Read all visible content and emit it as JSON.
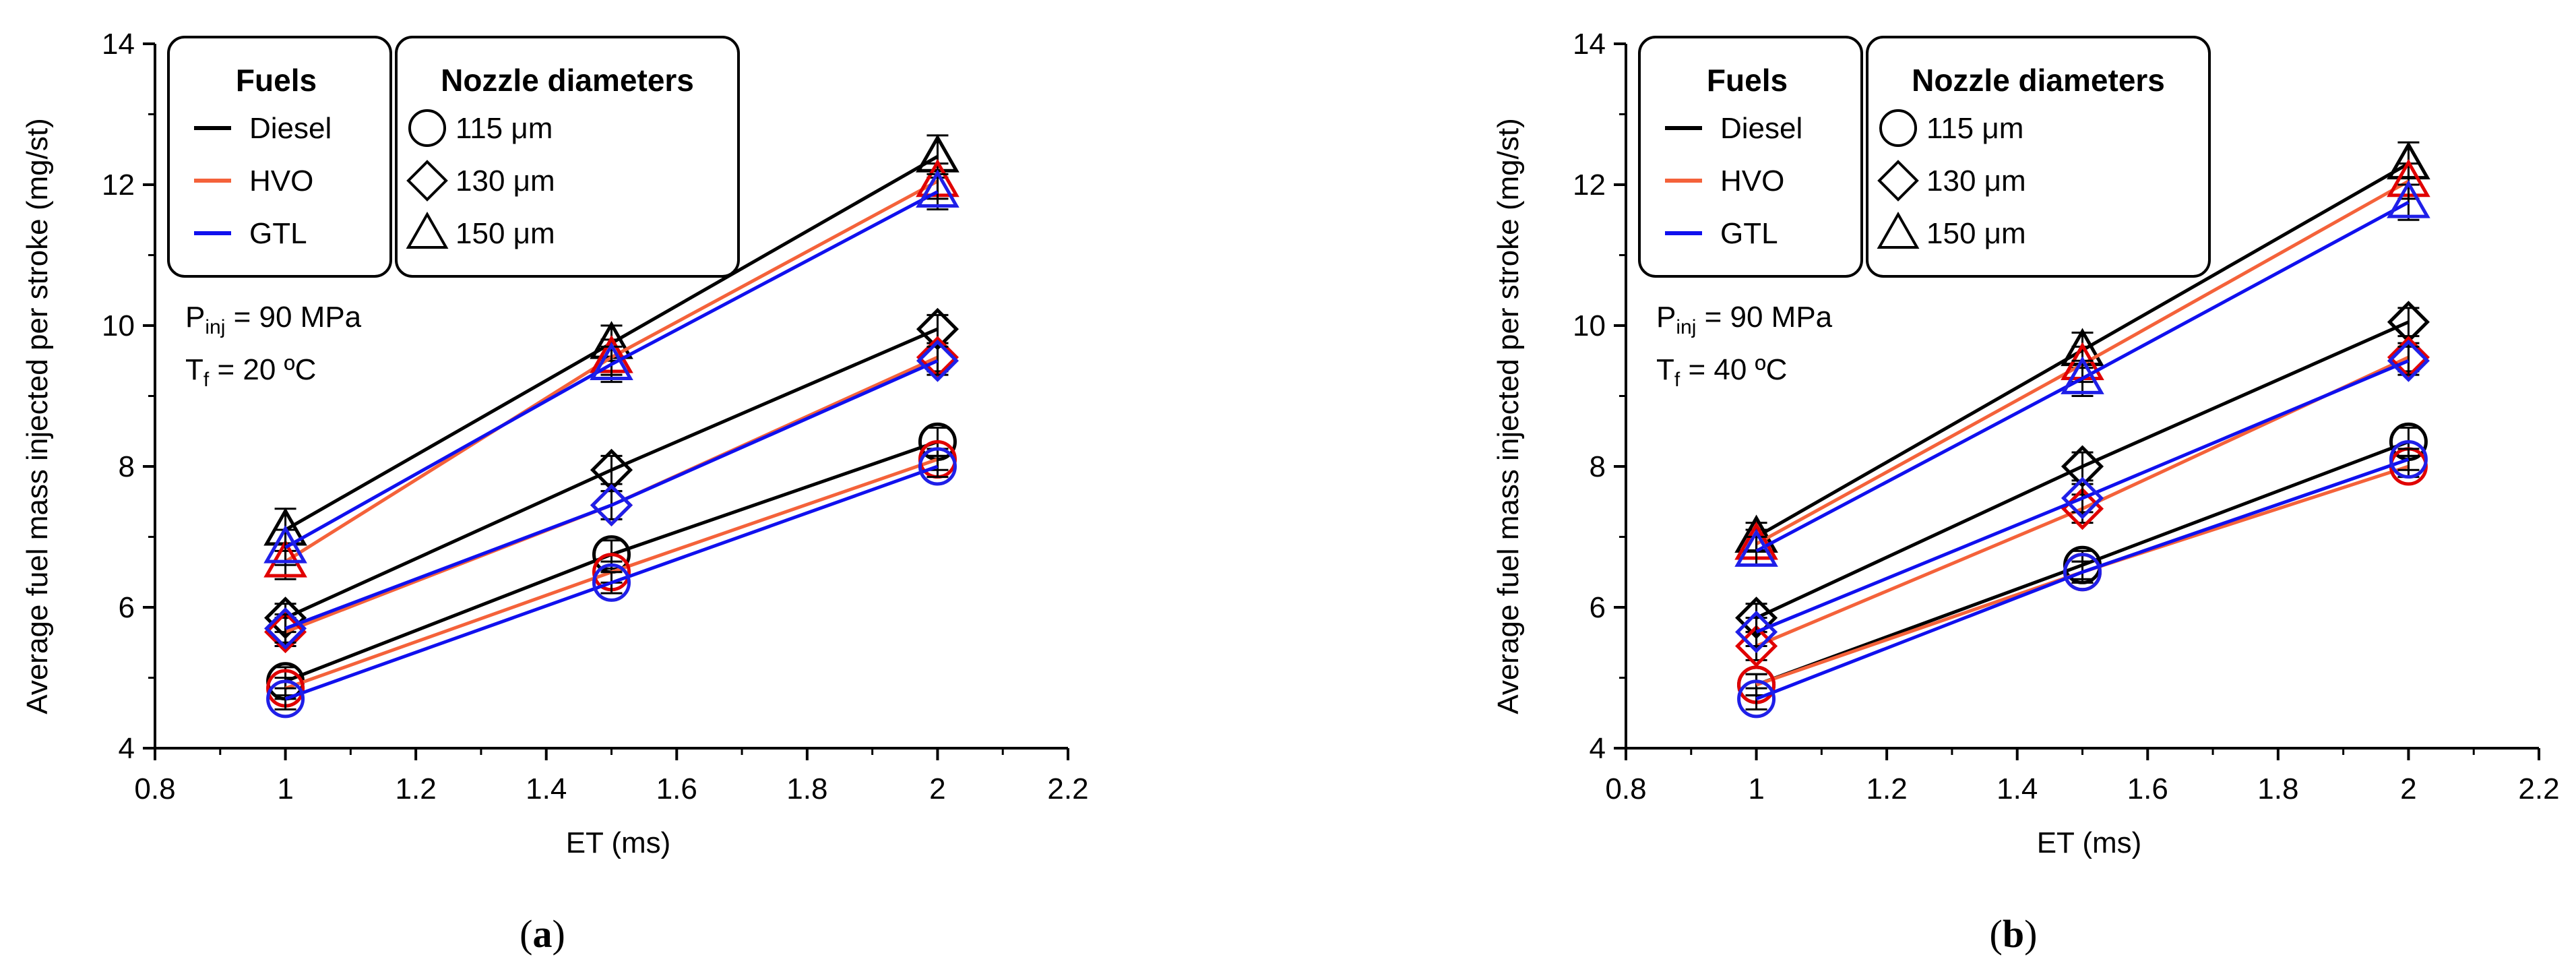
{
  "panels": [
    {
      "caption": {
        "pre": "(",
        "letter": "a",
        "post": ")"
      },
      "chart_data": {
        "type": "line",
        "xlabel": "ET (ms)",
        "ylabel": "Average fuel mass injected per stroke (mg/st)",
        "xlim": [
          0.8,
          2.2
        ],
        "ylim": [
          4,
          14
        ],
        "xticks": [
          "0.8",
          "1",
          "1.2",
          "1.4",
          "1.6",
          "1.8",
          "2",
          "2.2"
        ],
        "yticks": [
          "4",
          "6",
          "8",
          "10",
          "12",
          "14"
        ],
        "x": [
          1,
          1.5,
          2
        ],
        "series": [
          {
            "fuel": "Diesel",
            "nozzle": "115 μm",
            "values": [
              4.95,
              6.75,
              8.35
            ],
            "err": [
              0.2,
              0.2,
              0.2
            ]
          },
          {
            "fuel": "HVO",
            "nozzle": "115 μm",
            "values": [
              4.85,
              6.5,
              8.1
            ],
            "err": [
              0.15,
              0.15,
              0.15
            ]
          },
          {
            "fuel": "GTL",
            "nozzle": "115 μm",
            "values": [
              4.7,
              6.35,
              8.0
            ],
            "err": [
              0.15,
              0.15,
              0.15
            ]
          },
          {
            "fuel": "Diesel",
            "nozzle": "130 μm",
            "values": [
              5.85,
              7.95,
              9.95
            ],
            "err": [
              0.2,
              0.2,
              0.2
            ]
          },
          {
            "fuel": "HVO",
            "nozzle": "130 μm",
            "values": [
              5.65,
              7.45,
              9.55
            ],
            "err": [
              0.2,
              0.2,
              0.2
            ]
          },
          {
            "fuel": "GTL",
            "nozzle": "130 μm",
            "values": [
              5.7,
              7.45,
              9.5
            ],
            "err": [
              0.2,
              0.2,
              0.2
            ]
          },
          {
            "fuel": "Diesel",
            "nozzle": "150 μm",
            "values": [
              7.1,
              9.75,
              12.4
            ],
            "err": [
              0.3,
              0.25,
              0.3
            ]
          },
          {
            "fuel": "HVO",
            "nozzle": "150 μm",
            "values": [
              6.65,
              9.55,
              12.05
            ],
            "err": [
              0.25,
              0.25,
              0.25
            ]
          },
          {
            "fuel": "GTL",
            "nozzle": "150 μm",
            "values": [
              6.85,
              9.45,
              11.9
            ],
            "err": [
              0.25,
              0.25,
              0.25
            ]
          }
        ],
        "legend_fuels": {
          "title": "Fuels",
          "items": [
            "Diesel",
            "HVO",
            "GTL"
          ]
        },
        "legend_nozzles": {
          "title": "Nozzle diameters",
          "items": [
            "115 μm",
            "130 μm",
            "150 μm"
          ]
        },
        "annotation": {
          "p_main": "P",
          "p_sub": "inj",
          "p_value": " = 90 MPa",
          "t_main": "T",
          "t_sub": "f",
          "t_value": " = 20 ºC"
        }
      }
    },
    {
      "caption": {
        "pre": "(",
        "letter": "b",
        "post": ")"
      },
      "chart_data": {
        "type": "line",
        "xlabel": "ET (ms)",
        "ylabel": "Average fuel mass injected per stroke (mg/st)",
        "xlim": [
          0.8,
          2.2
        ],
        "ylim": [
          4,
          14
        ],
        "xticks": [
          "0.8",
          "1",
          "1.2",
          "1.4",
          "1.6",
          "1.8",
          "2",
          "2.2"
        ],
        "yticks": [
          "4",
          "6",
          "8",
          "10",
          "12",
          "14"
        ],
        "x": [
          1,
          1.5,
          2
        ],
        "series": [
          {
            "fuel": "Diesel",
            "nozzle": "115 μm",
            "values": [
              4.9,
              6.6,
              8.35
            ],
            "err": [
              0.15,
              0.2,
              0.2
            ]
          },
          {
            "fuel": "HVO",
            "nozzle": "115 μm",
            "values": [
              4.9,
              6.5,
              8.0
            ],
            "err": [
              0.15,
              0.15,
              0.15
            ]
          },
          {
            "fuel": "GTL",
            "nozzle": "115 μm",
            "values": [
              4.7,
              6.5,
              8.1
            ],
            "err": [
              0.15,
              0.15,
              0.15
            ]
          },
          {
            "fuel": "Diesel",
            "nozzle": "130 μm",
            "values": [
              5.85,
              8.0,
              10.05
            ],
            "err": [
              0.2,
              0.2,
              0.2
            ]
          },
          {
            "fuel": "HVO",
            "nozzle": "130 μm",
            "values": [
              5.45,
              7.4,
              9.55
            ],
            "err": [
              0.2,
              0.2,
              0.2
            ]
          },
          {
            "fuel": "GTL",
            "nozzle": "130 μm",
            "values": [
              5.65,
              7.55,
              9.5
            ],
            "err": [
              0.2,
              0.2,
              0.2
            ]
          },
          {
            "fuel": "Diesel",
            "nozzle": "150 μm",
            "values": [
              7.0,
              9.65,
              12.3
            ],
            "err": [
              0.2,
              0.25,
              0.3
            ]
          },
          {
            "fuel": "HVO",
            "nozzle": "150 μm",
            "values": [
              6.9,
              9.45,
              12.05
            ],
            "err": [
              0.2,
              0.25,
              0.25
            ]
          },
          {
            "fuel": "GTL",
            "nozzle": "150 μm",
            "values": [
              6.8,
              9.25,
              11.75
            ],
            "err": [
              0.2,
              0.25,
              0.25
            ]
          }
        ],
        "legend_fuels": {
          "title": "Fuels",
          "items": [
            "Diesel",
            "HVO",
            "GTL"
          ]
        },
        "legend_nozzles": {
          "title": "Nozzle diameters",
          "items": [
            "115 μm",
            "130 μm",
            "150 μm"
          ]
        },
        "annotation": {
          "p_main": "P",
          "p_sub": "inj",
          "p_value": " = 90 MPa",
          "t_main": "T",
          "t_sub": "f",
          "t_value": " = 40 ºC"
        }
      }
    }
  ],
  "colors": {
    "Diesel": "#000000",
    "HVO": "#f4623a",
    "GTL": "#1010ee",
    "marker_Diesel": "#000000",
    "marker_HVO": "#e00000",
    "marker_GTL": "#1f1fe8"
  },
  "markers": {
    "115 μm": "circle-icon",
    "130 μm": "diamond-icon",
    "150 μm": "triangle-icon"
  }
}
